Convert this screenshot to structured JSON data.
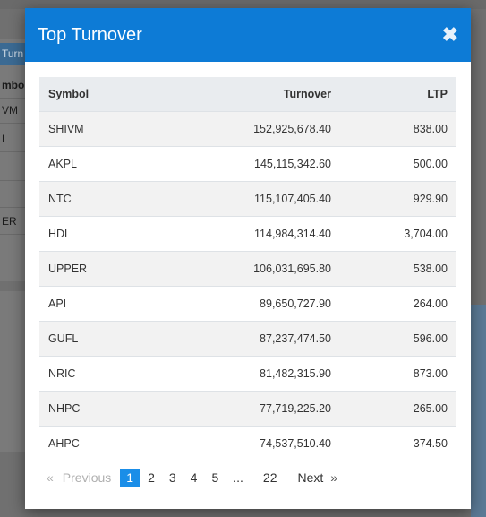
{
  "background": {
    "header_fragment": "Turn",
    "left_rows": [
      "mbol",
      "VM",
      "L",
      "",
      "",
      "ER"
    ]
  },
  "modal": {
    "title": "Top Turnover",
    "close_symbol": "✖"
  },
  "table": {
    "columns": [
      "Symbol",
      "Turnover",
      "LTP"
    ],
    "rows": [
      {
        "symbol": "SHIVM",
        "turnover": "152,925,678.40",
        "ltp": "838.00"
      },
      {
        "symbol": "AKPL",
        "turnover": "145,115,342.60",
        "ltp": "500.00"
      },
      {
        "symbol": "NTC",
        "turnover": "115,107,405.40",
        "ltp": "929.90"
      },
      {
        "symbol": "HDL",
        "turnover": "114,984,314.40",
        "ltp": "3,704.00"
      },
      {
        "symbol": "UPPER",
        "turnover": "106,031,695.80",
        "ltp": "538.00"
      },
      {
        "symbol": "API",
        "turnover": "89,650,727.90",
        "ltp": "264.00"
      },
      {
        "symbol": "GUFL",
        "turnover": "87,237,474.50",
        "ltp": "596.00"
      },
      {
        "symbol": "NRIC",
        "turnover": "81,482,315.90",
        "ltp": "873.00"
      },
      {
        "symbol": "NHPC",
        "turnover": "77,719,225.20",
        "ltp": "265.00"
      },
      {
        "symbol": "AHPC",
        "turnover": "74,537,510.40",
        "ltp": "374.50"
      }
    ]
  },
  "pagination": {
    "prev_arrow": "«",
    "prev_label": "Previous",
    "pages": [
      "1",
      "2",
      "3",
      "4",
      "5"
    ],
    "ellipsis": "...",
    "last_page": "22",
    "next_label": "Next",
    "next_arrow": "»",
    "active_page": "1"
  },
  "colors": {
    "header_blue": "#0d7bd6",
    "active_page": "#1a8ee8"
  }
}
